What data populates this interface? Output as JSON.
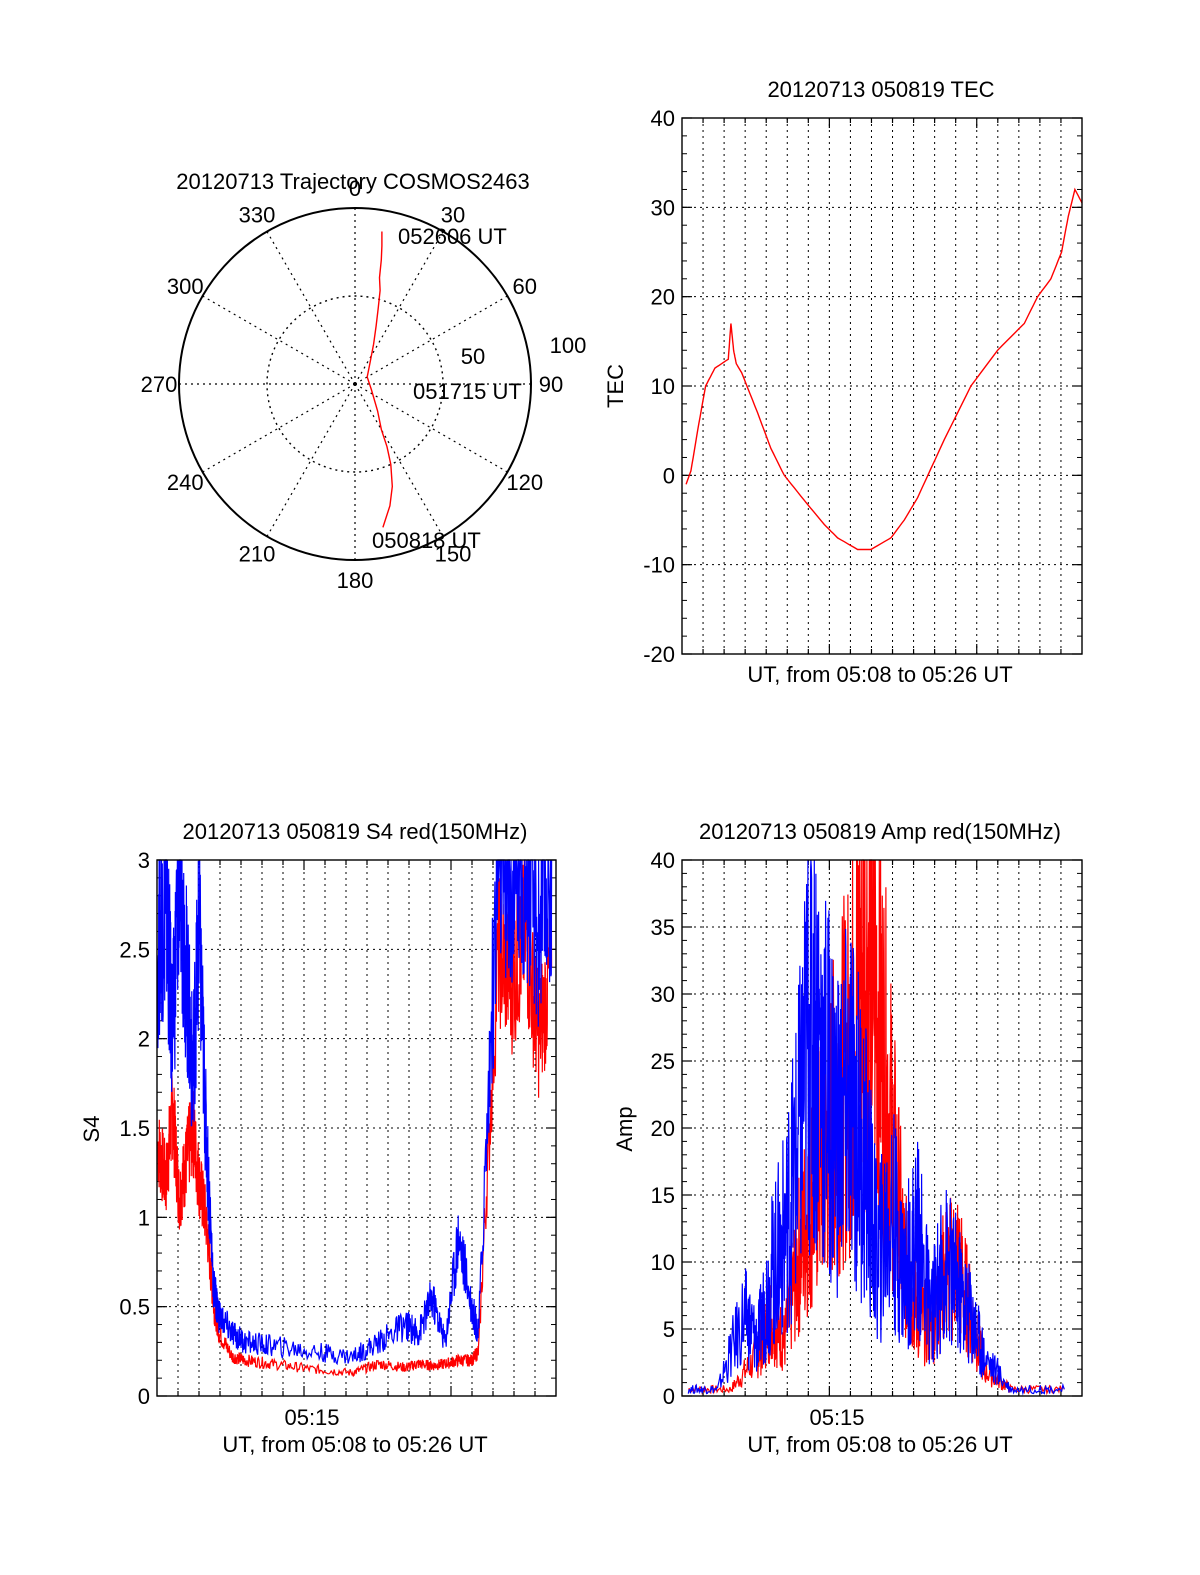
{
  "colors": {
    "red": "#ff0000",
    "blue": "#0000ff",
    "axis": "#000000",
    "grid": "#000000"
  },
  "chart_data": [
    {
      "type": "polar",
      "title": "20120713 Trajectory COSMOS2463",
      "angle_ticks": [
        "0",
        "30",
        "60",
        "90",
        "120",
        "150",
        "180",
        "210",
        "240",
        "270",
        "300",
        "330"
      ],
      "radius_labels": [
        "50",
        "100"
      ],
      "annotations": {
        "end": "052606 UT",
        "mid": "051715 UT",
        "start": "050818 UT"
      },
      "series": [
        {
          "color": "red",
          "points": [
            [
              169,
              83
            ],
            [
              164,
              72
            ],
            [
              160,
              62
            ],
            [
              156,
              50
            ],
            [
              153,
              40
            ],
            [
              150,
              30
            ],
            [
              140,
              20
            ],
            [
              110,
              10
            ],
            [
              60,
              8
            ],
            [
              35,
              15
            ],
            [
              25,
              25
            ],
            [
              20,
              35
            ],
            [
              17,
              45
            ],
            [
              15,
              55
            ],
            [
              13,
              62
            ],
            [
              12,
              72
            ],
            [
              11,
              80
            ],
            [
              10,
              88
            ]
          ]
        }
      ]
    },
    {
      "type": "line",
      "title": "20120713 050819 TEC",
      "xlabel": "UT, from 05:08 to 05:26 UT",
      "ylabel": "TEC",
      "xlim": [
        5.1333,
        5.4333
      ],
      "ylim": [
        -20,
        40
      ],
      "yticks": [
        "-20",
        "-10",
        "0",
        "10",
        "20",
        "30",
        "40"
      ],
      "grid": true,
      "series": [
        {
          "name": "",
          "color": "red",
          "x": [
            5.1364,
            5.14,
            5.145,
            5.151,
            5.158,
            5.163,
            5.168,
            5.17,
            5.172,
            5.174,
            5.178,
            5.19,
            5.2,
            5.21,
            5.225,
            5.24,
            5.25,
            5.265,
            5.275,
            5.29,
            5.3,
            5.31,
            5.33,
            5.35,
            5.37,
            5.39,
            5.4,
            5.41,
            5.418,
            5.423,
            5.428,
            5.4333
          ],
          "y": [
            -1,
            0.5,
            5,
            10,
            12,
            12.5,
            13,
            17,
            14,
            12.5,
            11.5,
            7,
            3,
            0,
            -2.8,
            -5.5,
            -7,
            -8.3,
            -8.3,
            -7,
            -5,
            -2.5,
            4,
            10,
            14,
            17,
            20,
            22,
            25,
            29,
            32,
            30.5
          ]
        }
      ]
    },
    {
      "type": "line",
      "title": "20120713 050819 S4 red(150MHz)",
      "xlabel": "UT, from 05:08 to 05:26 UT",
      "ylabel": "S4",
      "xlim": [
        5.1333,
        5.4333
      ],
      "ylim": [
        0,
        3
      ],
      "yticks": [
        "0",
        "0.5",
        "1",
        "1.5",
        "2",
        "2.5",
        "3"
      ],
      "xticks": [
        "05:15"
      ],
      "grid": true,
      "series": [
        {
          "name": "",
          "color": "red",
          "x": [
            5.134,
            5.14,
            5.145,
            5.15,
            5.155,
            5.16,
            5.165,
            5.17,
            5.176,
            5.18,
            5.19,
            5.2,
            5.22,
            5.25,
            5.28,
            5.3,
            5.32,
            5.33,
            5.34,
            5.35,
            5.36,
            5.37,
            5.375,
            5.39,
            5.4,
            5.41,
            5.42,
            5.43
          ],
          "y": [
            1.4,
            1.2,
            1.6,
            1.1,
            1.3,
            1.5,
            1.2,
            1.0,
            0.5,
            0.35,
            0.22,
            0.2,
            0.18,
            0.15,
            0.13,
            0.18,
            0.16,
            0.18,
            0.17,
            0.18,
            0.2,
            0.2,
            0.25,
            2.5,
            2.3,
            2.6,
            2.0,
            2.4
          ]
        },
        {
          "name": "",
          "color": "blue",
          "x": [
            5.134,
            5.14,
            5.145,
            5.15,
            5.155,
            5.16,
            5.165,
            5.17,
            5.176,
            5.18,
            5.19,
            5.2,
            5.22,
            5.25,
            5.28,
            5.3,
            5.32,
            5.33,
            5.34,
            5.35,
            5.36,
            5.37,
            5.375,
            5.39,
            5.4,
            5.41,
            5.42,
            5.43
          ],
          "y": [
            2.5,
            2.8,
            2.0,
            3.0,
            2.4,
            1.8,
            2.6,
            1.5,
            0.6,
            0.45,
            0.35,
            0.3,
            0.28,
            0.25,
            0.22,
            0.3,
            0.4,
            0.35,
            0.55,
            0.3,
            0.9,
            0.5,
            0.35,
            3.0,
            2.8,
            3.0,
            2.6,
            3.0
          ]
        }
      ]
    },
    {
      "type": "line",
      "title": "20120713 050819 Amp red(150MHz)",
      "xlabel": "UT, from 05:08 to 05:26 UT",
      "ylabel": "Amp",
      "xlim": [
        5.1333,
        5.4333
      ],
      "ylim": [
        0,
        40
      ],
      "yticks": [
        "0",
        "5",
        "10",
        "15",
        "20",
        "25",
        "30",
        "35",
        "40"
      ],
      "xticks": [
        "05:15"
      ],
      "grid": true,
      "series": [
        {
          "name": "",
          "color": "red",
          "x": [
            5.138,
            5.17,
            5.19,
            5.2,
            5.21,
            5.22,
            5.23,
            5.24,
            5.25,
            5.26,
            5.27,
            5.28,
            5.29,
            5.3,
            5.31,
            5.32,
            5.33,
            5.34,
            5.35,
            5.36,
            5.38,
            5.42
          ],
          "y": [
            0.5,
            0.5,
            3,
            6,
            4,
            10,
            15,
            18,
            22,
            25,
            35,
            30,
            20,
            10,
            6,
            5,
            9,
            10,
            6,
            2,
            0.5,
            0.5
          ]
        },
        {
          "name": "",
          "color": "blue",
          "x": [
            5.138,
            5.16,
            5.18,
            5.19,
            5.2,
            5.21,
            5.22,
            5.23,
            5.24,
            5.25,
            5.26,
            5.27,
            5.28,
            5.29,
            5.3,
            5.31,
            5.32,
            5.33,
            5.34,
            5.35,
            5.36,
            5.38,
            5.42
          ],
          "y": [
            0.5,
            0.5,
            6,
            4,
            9,
            12,
            18,
            29,
            24,
            20,
            22,
            18,
            10,
            14,
            9,
            12,
            6,
            10,
            8,
            6,
            3,
            0.5,
            0.5
          ]
        }
      ]
    }
  ]
}
